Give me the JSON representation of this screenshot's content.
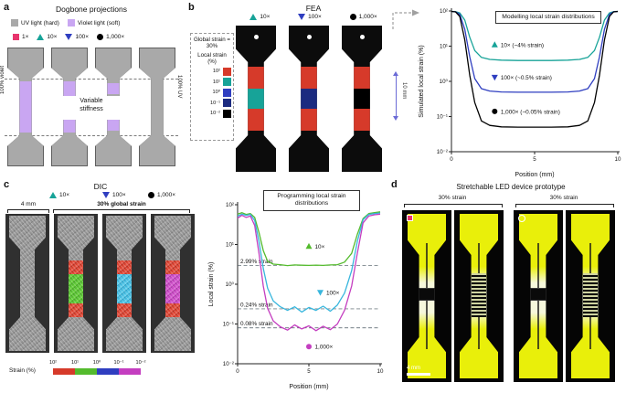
{
  "colors": {
    "pink": "#e8356d",
    "teal": "#17a398",
    "blue": "#2f3ec0",
    "navy": "#1c2b80",
    "red": "#d63a2a",
    "green": "#54bb2d",
    "cyan": "#38b6dd",
    "magenta": "#c43ec0",
    "violet": "#c9a6f2",
    "gray": "#a9a9a9",
    "yellow": "#e9ef0a"
  },
  "panel_a": {
    "letter": "a",
    "title": "Dogbone projections",
    "legend": [
      {
        "label": "UV light (hard)"
      },
      {
        "label": "Violet light (soft)"
      }
    ],
    "markers": [
      {
        "label": "1×"
      },
      {
        "label": "10×"
      },
      {
        "label": "100×"
      },
      {
        "label": "1,000×"
      }
    ],
    "left_label": "100% violet",
    "right_label": "100% UV",
    "center_label_1": "Variable",
    "center_label_2": "stiffness"
  },
  "panel_b": {
    "letter": "b",
    "title": "FEA",
    "markers": [
      {
        "label": "10×"
      },
      {
        "label": "100×"
      },
      {
        "label": "1,000×"
      }
    ],
    "info_line1": "Global strain =",
    "info_line2": "30%",
    "info_line3": "Local strain (%)",
    "colorbar_ticks": [
      "10²",
      "10¹",
      "10⁰",
      "10⁻¹",
      "10⁻²"
    ],
    "scale_annotation": "10 mm"
  },
  "panel_c": {
    "letter": "c",
    "title": "DIC",
    "markers": [
      {
        "label": "10×"
      },
      {
        "label": "100×"
      },
      {
        "label": "1,000×"
      }
    ],
    "scale_label": "4 mm",
    "strain_label": "30% global strain",
    "legend_title": "Strain (%)",
    "legend_ticks": [
      "10²",
      "10¹",
      "10⁰",
      "10⁻¹",
      "10⁻²"
    ]
  },
  "panel_d": {
    "letter": "d",
    "title": "Stretchable LED device prototype",
    "group1_label": "30% strain",
    "group2_label": "30% strain",
    "scale_label": "4 mm"
  },
  "chart_data": [
    {
      "id": "chart-b",
      "type": "line",
      "title": "Modelling local strain distributions",
      "xlabel": "Position (mm)",
      "ylabel": "Simulated local strain (%)",
      "xlim": [
        0,
        10
      ],
      "x_ticks": [
        0,
        5,
        10
      ],
      "yscale": "log",
      "ylim_exp": [
        -2,
        2
      ],
      "y_ticks": [
        "10²",
        "10¹",
        "10⁰",
        "10⁻¹",
        "10⁻²"
      ],
      "legend_position": "inline-annotations",
      "grid": false,
      "margins": {
        "l": 38,
        "r": 8,
        "t": 10,
        "b": 30
      },
      "series": [
        {
          "name": "10×",
          "annotation": "10× (~4% strain)",
          "marker": "triangle-up",
          "color": "#17a398",
          "label_at": [
            2.6,
            11
          ],
          "points": [
            [
              0,
              97
            ],
            [
              0.25,
              96
            ],
            [
              0.5,
              88
            ],
            [
              0.8,
              55
            ],
            [
              1.1,
              18
            ],
            [
              1.4,
              7.5
            ],
            [
              1.8,
              4.8
            ],
            [
              2.3,
              4.2
            ],
            [
              3,
              4
            ],
            [
              4,
              3.9
            ],
            [
              5,
              3.9
            ],
            [
              6,
              3.9
            ],
            [
              7,
              4
            ],
            [
              7.7,
              4.2
            ],
            [
              8.2,
              4.8
            ],
            [
              8.6,
              7.5
            ],
            [
              8.9,
              18
            ],
            [
              9.2,
              55
            ],
            [
              9.5,
              88
            ],
            [
              9.75,
              96
            ],
            [
              10,
              97
            ]
          ]
        },
        {
          "name": "100×",
          "annotation": "100× (~0.5% strain)",
          "marker": "triangle-down",
          "color": "#2f3ec0",
          "label_at": [
            2.6,
            1.3
          ],
          "points": [
            [
              0,
              97
            ],
            [
              0.25,
              95
            ],
            [
              0.5,
              80
            ],
            [
              0.8,
              30
            ],
            [
              1.1,
              5
            ],
            [
              1.4,
              1.2
            ],
            [
              1.8,
              0.62
            ],
            [
              2.3,
              0.53
            ],
            [
              3,
              0.5
            ],
            [
              4,
              0.49
            ],
            [
              5,
              0.49
            ],
            [
              6,
              0.49
            ],
            [
              7,
              0.5
            ],
            [
              7.7,
              0.53
            ],
            [
              8.2,
              0.62
            ],
            [
              8.6,
              1.2
            ],
            [
              8.9,
              5
            ],
            [
              9.2,
              30
            ],
            [
              9.5,
              80
            ],
            [
              9.75,
              95
            ],
            [
              10,
              97
            ]
          ]
        },
        {
          "name": "1,000×",
          "annotation": "1,000× (~0.05% strain)",
          "marker": "circle",
          "color": "#000000",
          "label_at": [
            2.6,
            0.14
          ],
          "points": [
            [
              0,
              97
            ],
            [
              0.25,
              94
            ],
            [
              0.5,
              70
            ],
            [
              0.8,
              15
            ],
            [
              1.1,
              1.5
            ],
            [
              1.4,
              0.25
            ],
            [
              1.8,
              0.075
            ],
            [
              2.3,
              0.056
            ],
            [
              3,
              0.051
            ],
            [
              4,
              0.05
            ],
            [
              5,
              0.05
            ],
            [
              6,
              0.05
            ],
            [
              7,
              0.051
            ],
            [
              7.7,
              0.056
            ],
            [
              8.2,
              0.075
            ],
            [
              8.6,
              0.25
            ],
            [
              8.9,
              1.5
            ],
            [
              9.2,
              15
            ],
            [
              9.5,
              70
            ],
            [
              9.75,
              94
            ],
            [
              10,
              97
            ]
          ]
        }
      ]
    },
    {
      "id": "chart-c",
      "type": "line",
      "title": "Programming local strain distributions",
      "xlabel": "Position (mm)",
      "ylabel": "Local strain (%)",
      "xlim": [
        0,
        10
      ],
      "x_ticks": [
        0,
        5,
        10
      ],
      "yscale": "log",
      "ylim_exp": [
        -2,
        2
      ],
      "y_ticks": [
        "10²",
        "10¹",
        "10⁰",
        "10⁻¹",
        "10⁻²"
      ],
      "legend_position": "inline-annotations",
      "grid": false,
      "margins": {
        "l": 34,
        "r": 8,
        "t": 24,
        "b": 30
      },
      "dashed_lines": [
        {
          "y": 2.99,
          "label": "2.99% strain"
        },
        {
          "y": 0.24,
          "label": "0.24% strain"
        },
        {
          "y": 0.08,
          "label": "0.08% strain"
        }
      ],
      "series": [
        {
          "name": "10×",
          "annotation": "10×",
          "marker": "triangle-up",
          "color": "#54bb2d",
          "label_at": [
            5.0,
            9
          ],
          "points": [
            [
              0,
              58
            ],
            [
              0.3,
              63
            ],
            [
              0.6,
              57
            ],
            [
              0.9,
              60
            ],
            [
              1.2,
              48
            ],
            [
              1.5,
              20
            ],
            [
              1.8,
              7
            ],
            [
              2.1,
              3.8
            ],
            [
              2.5,
              3.2
            ],
            [
              3,
              3.1
            ],
            [
              3.5,
              2.95
            ],
            [
              4,
              3.05
            ],
            [
              4.5,
              3.0
            ],
            [
              5,
              2.97
            ],
            [
              5.5,
              3.02
            ],
            [
              6,
              2.98
            ],
            [
              6.5,
              3.05
            ],
            [
              7,
              3.1
            ],
            [
              7.5,
              3.6
            ],
            [
              8,
              6
            ],
            [
              8.4,
              18
            ],
            [
              8.8,
              45
            ],
            [
              9.2,
              60
            ],
            [
              9.6,
              63
            ],
            [
              10,
              66
            ]
          ]
        },
        {
          "name": "100×",
          "annotation": "100×",
          "marker": "triangle-down",
          "color": "#38b6dd",
          "label_at": [
            5.8,
            0.62
          ],
          "points": [
            [
              0,
              52
            ],
            [
              0.3,
              58
            ],
            [
              0.6,
              54
            ],
            [
              0.9,
              57
            ],
            [
              1.2,
              40
            ],
            [
              1.5,
              12
            ],
            [
              1.8,
              2.5
            ],
            [
              2.1,
              0.8
            ],
            [
              2.5,
              0.38
            ],
            [
              3,
              0.27
            ],
            [
              3.5,
              0.22
            ],
            [
              4,
              0.27
            ],
            [
              4.5,
              0.2
            ],
            [
              5,
              0.26
            ],
            [
              5.5,
              0.22
            ],
            [
              6,
              0.28
            ],
            [
              6.5,
              0.21
            ],
            [
              7,
              0.3
            ],
            [
              7.5,
              0.6
            ],
            [
              8,
              2.2
            ],
            [
              8.4,
              12
            ],
            [
              8.8,
              42
            ],
            [
              9.2,
              57
            ],
            [
              9.6,
              60
            ],
            [
              10,
              62
            ]
          ]
        },
        {
          "name": "1,000×",
          "annotation": "1,000×",
          "marker": "circle",
          "color": "#c43ec0",
          "label_at": [
            5.0,
            0.027
          ],
          "points": [
            [
              0,
              46
            ],
            [
              0.3,
              54
            ],
            [
              0.6,
              48
            ],
            [
              0.9,
              52
            ],
            [
              1.2,
              30
            ],
            [
              1.5,
              6
            ],
            [
              1.8,
              0.9
            ],
            [
              2.1,
              0.25
            ],
            [
              2.5,
              0.12
            ],
            [
              3,
              0.085
            ],
            [
              3.5,
              0.07
            ],
            [
              4,
              0.095
            ],
            [
              4.5,
              0.075
            ],
            [
              5,
              0.09
            ],
            [
              5.5,
              0.068
            ],
            [
              6,
              0.088
            ],
            [
              6.5,
              0.072
            ],
            [
              7,
              0.1
            ],
            [
              7.5,
              0.22
            ],
            [
              8,
              0.9
            ],
            [
              8.4,
              6
            ],
            [
              8.8,
              35
            ],
            [
              9.2,
              52
            ],
            [
              9.6,
              56
            ],
            [
              10,
              58
            ]
          ]
        }
      ]
    }
  ]
}
